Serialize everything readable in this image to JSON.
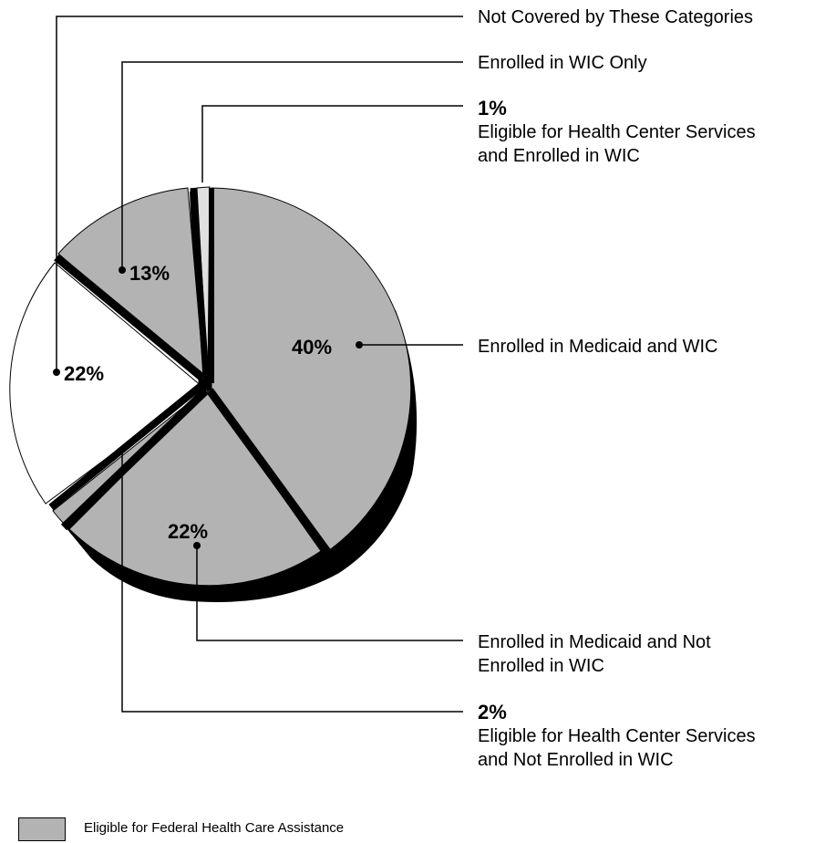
{
  "chart_data": {
    "type": "pie",
    "slices": [
      {
        "label": "Enrolled in Medicaid and WIC",
        "value": 40,
        "value_label": "40%",
        "group": "eligible",
        "color": "#b3b3b3"
      },
      {
        "label": "Enrolled in Medicaid and Not Enrolled in WIC",
        "value": 22,
        "value_label": "22%",
        "group": "eligible",
        "color": "#b3b3b3"
      },
      {
        "label": "Eligible for Health Center Services and Not Enrolled in WIC",
        "value": 2,
        "value_label": "2%",
        "group": "eligible",
        "color": "#b3b3b3"
      },
      {
        "label": "Not Covered by These Categories",
        "value": 22,
        "value_label": "22%",
        "group": "other",
        "color": "#ffffff"
      },
      {
        "label": "Enrolled in WIC Only",
        "value": 13,
        "value_label": "13%",
        "group": "eligible",
        "color": "#b3b3b3"
      },
      {
        "label": "Eligible for Health Center Services and Enrolled in WIC",
        "value": 1,
        "value_label": "1%",
        "group": "eligible",
        "color": "#b3b3b3"
      }
    ],
    "legend": [
      {
        "label": "Eligible for Federal Health Care Assistance",
        "color": "#b3b3b3"
      }
    ],
    "title": ""
  }
}
